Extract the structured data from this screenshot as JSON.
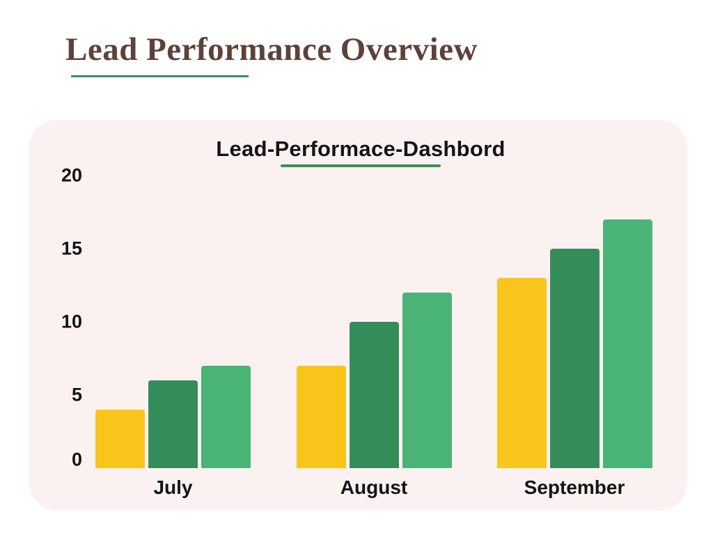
{
  "page": {
    "title": "Lead Performance Overview"
  },
  "colors": {
    "background": "#FFFFFF",
    "panel_background": "#FCF1F1",
    "title_brown": "#5C4238",
    "accent_green": "#36915B",
    "text_black": "#141414"
  },
  "chart_data": {
    "type": "bar",
    "title": "Lead-Performace-Dashbord",
    "categories": [
      "July",
      "August",
      "September"
    ],
    "series": [
      {
        "name": "yellow",
        "color": "#F9C51B",
        "values": [
          4,
          7,
          13
        ]
      },
      {
        "name": "dark-green",
        "color": "#358C5B",
        "values": [
          6,
          10,
          15
        ]
      },
      {
        "name": "light-green",
        "color": "#4AB577",
        "values": [
          7,
          12,
          17
        ]
      }
    ],
    "xlabel": "",
    "ylabel": "",
    "ylim": [
      0,
      20
    ],
    "yticks": [
      0,
      5,
      10,
      15,
      20
    ],
    "grid": false,
    "legend": "none"
  }
}
